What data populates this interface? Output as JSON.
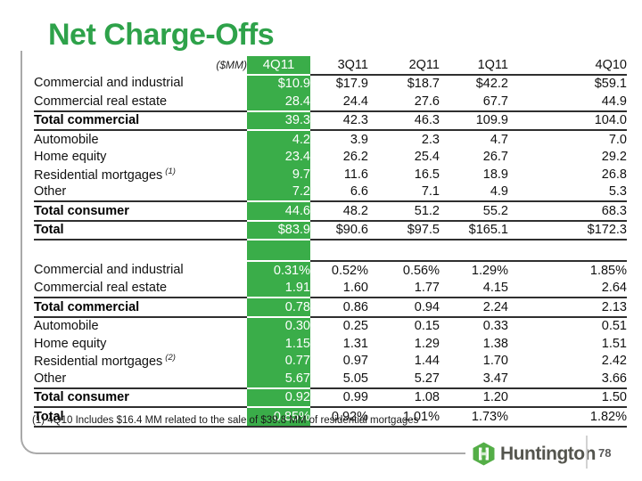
{
  "title": "Net Charge-Offs",
  "table": {
    "unit_label": "($MM)",
    "columns": [
      "4Q11",
      "3Q11",
      "2Q11",
      "1Q11",
      "4Q10"
    ],
    "sections": [
      {
        "name": "dollars",
        "rows": [
          {
            "label": "Commercial and industrial",
            "rule": "numeric",
            "values": [
              "$10.9",
              "$17.9",
              "$18.7",
              "$42.2",
              "$59.1"
            ]
          },
          {
            "label": "Commercial real estate",
            "values": [
              "28.4",
              "24.4",
              "27.6",
              "67.7",
              "44.9"
            ]
          },
          {
            "label": "Total commercial",
            "bold": true,
            "rule": "full",
            "values": [
              "39.3",
              "42.3",
              "46.3",
              "109.9",
              "104.0"
            ]
          },
          {
            "label": "Automobile",
            "rule": "full",
            "values": [
              "4.2",
              "3.9",
              "2.3",
              "4.7",
              "7.0"
            ]
          },
          {
            "label": "Home equity",
            "values": [
              "23.4",
              "26.2",
              "25.4",
              "26.7",
              "29.2"
            ]
          },
          {
            "label": "Residential mortgages",
            "sup": "(1)",
            "values": [
              "9.7",
              "11.6",
              "16.5",
              "18.9",
              "26.8"
            ]
          },
          {
            "label": "Other",
            "values": [
              "7.2",
              "6.6",
              "7.1",
              "4.9",
              "5.3"
            ]
          },
          {
            "label": "Total consumer",
            "bold": true,
            "rule": "full",
            "values": [
              "44.6",
              "48.2",
              "51.2",
              "55.2",
              "68.3"
            ]
          },
          {
            "label": "Total",
            "bold": true,
            "rule": "full",
            "values": [
              "$83.9",
              "$90.6",
              "$97.5",
              "$165.1",
              "$172.3"
            ]
          }
        ]
      },
      {
        "name": "percent",
        "rows": [
          {
            "label": "Commercial and industrial",
            "rule": "numeric",
            "values": [
              "0.31%",
              "0.52%",
              "0.56%",
              "1.29%",
              "1.85%"
            ]
          },
          {
            "label": "Commercial real estate",
            "values": [
              "1.91",
              "1.60",
              "1.77",
              "4.15",
              "2.64"
            ]
          },
          {
            "label": "Total commercial",
            "bold": true,
            "rule": "full",
            "values": [
              "0.78",
              "0.86",
              "0.94",
              "2.24",
              "2.13"
            ]
          },
          {
            "label": "Automobile",
            "rule": "full",
            "values": [
              "0.30",
              "0.25",
              "0.15",
              "0.33",
              "0.51"
            ]
          },
          {
            "label": "Home equity",
            "values": [
              "1.15",
              "1.31",
              "1.29",
              "1.38",
              "1.51"
            ]
          },
          {
            "label": "Residential mortgages",
            "sup": "(2)",
            "values": [
              "0.77",
              "0.97",
              "1.44",
              "1.70",
              "2.42"
            ]
          },
          {
            "label": "Other",
            "values": [
              "5.67",
              "5.05",
              "5.27",
              "3.47",
              "3.66"
            ]
          },
          {
            "label": "Total consumer",
            "bold": true,
            "rule": "full",
            "values": [
              "0.92",
              "0.99",
              "1.08",
              "1.20",
              "1.50"
            ]
          },
          {
            "label": "Total",
            "bold": true,
            "rule": "full",
            "values": [
              "0.85%",
              "0.92%",
              "1.01%",
              "1.73%",
              "1.82%"
            ]
          }
        ]
      }
    ]
  },
  "footnote": "(1)  4Q10 Includes $16.4 MM related to the sale of $39.8 MM of residential mortgages",
  "footer": {
    "brand": "Huntington",
    "page_number": "78"
  },
  "colors": {
    "accent_green": "#3aad49",
    "title_green": "#2ea24a",
    "rule_dark": "#2f2f2f",
    "frame_gray": "#a9a9a9"
  }
}
